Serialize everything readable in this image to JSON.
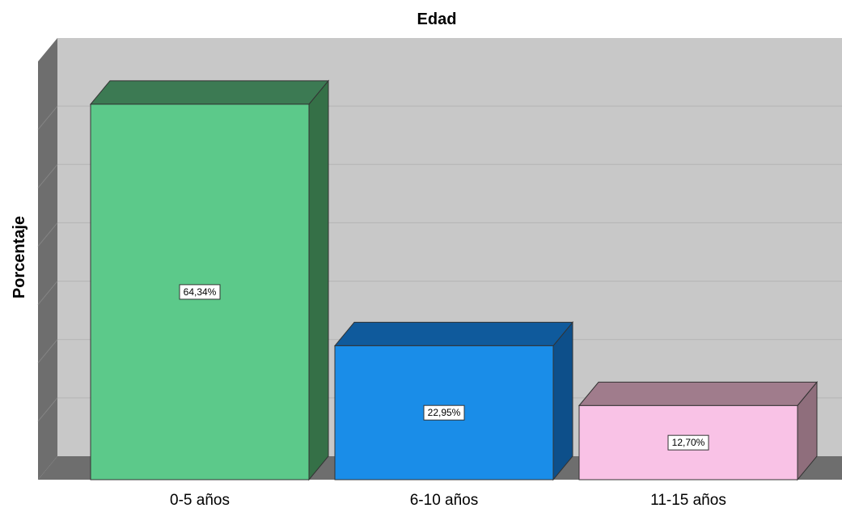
{
  "chart_data": {
    "type": "bar",
    "title": "Edad",
    "xlabel": "",
    "ylabel": "Porcentaje",
    "categories": [
      "0-5 años",
      "6-10 años",
      "11-15 años"
    ],
    "values": [
      64.34,
      22.95,
      12.7
    ],
    "data_labels": [
      "64,34%",
      "22,95%",
      "12,70%"
    ],
    "ylim": [
      0,
      70
    ],
    "grid": true,
    "style": "3d",
    "colors": {
      "wall": "#c8c8c8",
      "wall_side": "#6e6e6e",
      "floor": "#6e6e6e",
      "bars": [
        {
          "front": "#5cc98a",
          "top": "#3c7a53",
          "side": "#357047"
        },
        {
          "front": "#1a8de8",
          "top": "#0f5a9c",
          "side": "#0d4f8a"
        },
        {
          "front": "#f9c2e6",
          "top": "#a07c8c",
          "side": "#8f6e7c"
        }
      ]
    }
  }
}
